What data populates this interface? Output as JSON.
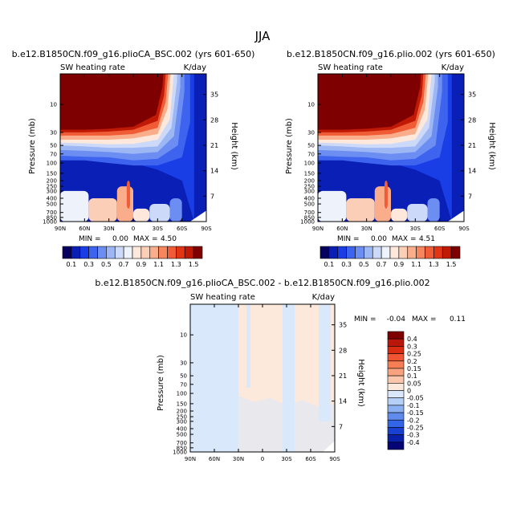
{
  "figure_title": "JJA",
  "chart_data": [
    {
      "type": "heatmap",
      "title": "b.e12.B1850CN.f09_g16.plioCA_BSC.002 (yrs 601-650)",
      "left_label": "SW heating rate",
      "right_label": "K/day",
      "xlabel": "",
      "ylabel": "Pressure (mb)",
      "y2label": "Height (km)",
      "x_ticks": [
        "90N",
        "60N",
        "30N",
        "0",
        "30S",
        "60S",
        "90S"
      ],
      "y_ticks": [
        "10",
        "30",
        "50",
        "70",
        "100",
        "150",
        "200",
        "250",
        "300",
        "400",
        "500",
        "700",
        "850",
        "1000"
      ],
      "y2_ticks": [
        "35",
        "28",
        "21",
        "14",
        "7"
      ],
      "y_scale": "log",
      "ylim": [
        1000,
        3
      ],
      "xlim": [
        90,
        -90
      ],
      "min_label": "MIN =",
      "min_value": "0.00",
      "max_label": "MAX =",
      "max_value": "4.50",
      "colorbar": {
        "levels": [
          "0.1",
          "0.3",
          "0.5",
          "0.7",
          "0.9",
          "1.1",
          "1.3",
          "1.5"
        ],
        "colors": [
          "#08005e",
          "#0a1fb6",
          "#1a3ee6",
          "#3d63ef",
          "#6c8df2",
          "#9db6f4",
          "#cdd9f8",
          "#eef3fb",
          "#fde8db",
          "#fbcfb7",
          "#f9ad8b",
          "#f5865e",
          "#ef5c36",
          "#e23515",
          "#c01a06",
          "#7f0000"
        ]
      }
    },
    {
      "type": "heatmap",
      "title": "b.e12.B1850CN.f09_g16.plio.002 (yrs 601-650)",
      "left_label": "SW heating rate",
      "right_label": "K/day",
      "xlabel": "",
      "ylabel": "Pressure (mb)",
      "y2label": "Height (km)",
      "x_ticks": [
        "90N",
        "60N",
        "30N",
        "0",
        "30S",
        "60S",
        "90S"
      ],
      "y_ticks": [
        "10",
        "30",
        "50",
        "70",
        "100",
        "150",
        "200",
        "250",
        "300",
        "400",
        "500",
        "700",
        "850",
        "1000"
      ],
      "y2_ticks": [
        "35",
        "28",
        "21",
        "14",
        "7"
      ],
      "y_scale": "log",
      "ylim": [
        1000,
        3
      ],
      "xlim": [
        90,
        -90
      ],
      "min_label": "MIN =",
      "min_value": "0.00",
      "max_label": "MAX =",
      "max_value": "4.51",
      "colorbar": {
        "levels": [
          "0.1",
          "0.3",
          "0.5",
          "0.7",
          "0.9",
          "1.1",
          "1.3",
          "1.5"
        ],
        "colors": [
          "#08005e",
          "#0a1fb6",
          "#1a3ee6",
          "#3d63ef",
          "#6c8df2",
          "#9db6f4",
          "#cdd9f8",
          "#eef3fb",
          "#fde8db",
          "#fbcfb7",
          "#f9ad8b",
          "#f5865e",
          "#ef5c36",
          "#e23515",
          "#c01a06",
          "#7f0000"
        ]
      }
    },
    {
      "type": "heatmap",
      "title": "b.e12.B1850CN.f09_g16.plioCA_BSC.002 - b.e12.B1850CN.f09_g16.plio.002",
      "left_label": "SW heating rate",
      "right_label": "K/day",
      "xlabel": "",
      "ylabel": "Pressure (mb)",
      "y2label": "Height (km)",
      "x_ticks": [
        "90N",
        "60N",
        "30N",
        "0",
        "30S",
        "60S",
        "90S"
      ],
      "y_ticks": [
        "10",
        "30",
        "50",
        "70",
        "100",
        "150",
        "200",
        "250",
        "300",
        "400",
        "500",
        "700",
        "850",
        "1000"
      ],
      "y2_ticks": [
        "35",
        "28",
        "21",
        "14",
        "7"
      ],
      "y_scale": "log",
      "ylim": [
        1000,
        3
      ],
      "xlim": [
        90,
        -90
      ],
      "min_label": "MIN =",
      "min_value": "-0.04",
      "max_label": "MAX =",
      "max_value": "0.11",
      "colorbar": {
        "levels": [
          "0.4",
          "0.3",
          "0.25",
          "0.2",
          "0.15",
          "0.1",
          "0.05",
          "0",
          "-0.05",
          "-0.1",
          "-0.15",
          "-0.2",
          "-0.25",
          "-0.3",
          "-0.4"
        ],
        "colors": [
          "#7f0000",
          "#b8170a",
          "#d92c13",
          "#ef5433",
          "#f57e55",
          "#f8a27f",
          "#fbc6ab",
          "#fde9db",
          "#d9e8fb",
          "#b5cff6",
          "#8bb0f1",
          "#5f8bec",
          "#3366e6",
          "#1840d1",
          "#0a20a8",
          "#050575"
        ]
      },
      "regions": [
        {
          "from": 90,
          "to": 60,
          "p_top": 3,
          "p_bottom": 1000,
          "value": "-0.05..0"
        },
        {
          "from": 60,
          "to": 30,
          "p_top": 3,
          "p_bottom": 1000,
          "value": "-0.05..0"
        },
        {
          "from": 20,
          "to": 15,
          "p_top": 3,
          "p_bottom": 80,
          "value": "-0.05..0"
        },
        {
          "from": -25,
          "to": -40,
          "p_top": 3,
          "p_bottom": 1000,
          "value": "-0.05..0"
        },
        {
          "from": -70,
          "to": -85,
          "p_top": 3,
          "p_bottom": 300,
          "value": "-0.05..0"
        }
      ]
    }
  ]
}
